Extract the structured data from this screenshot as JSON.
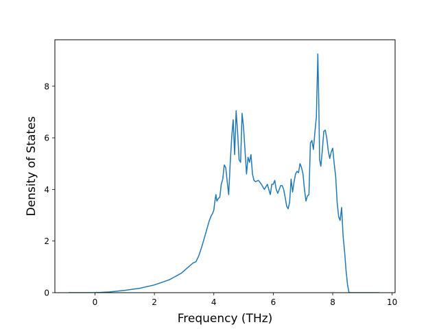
{
  "chart_data": {
    "type": "line",
    "title": "",
    "xlabel": "Frequency (THz)",
    "ylabel": "Density of States",
    "xlim": [
      -1.35,
      10.1
    ],
    "ylim": [
      0,
      9.8
    ],
    "x_ticks": [
      0,
      2,
      4,
      6,
      8,
      10
    ],
    "y_ticks": [
      0,
      2,
      4,
      6,
      8
    ],
    "x_tick_labels": [
      "0",
      "2",
      "4",
      "6",
      "8",
      "10"
    ],
    "y_tick_labels": [
      "0",
      "2",
      "4",
      "6",
      "8"
    ],
    "grid": false,
    "series": [
      {
        "color": "#1f77b4",
        "x": [
          -0.87,
          0.0,
          0.5,
          1.0,
          1.5,
          2.0,
          2.5,
          2.9,
          3.1,
          3.3,
          3.4,
          3.5,
          3.6,
          3.7,
          3.75,
          3.8,
          3.85,
          3.9,
          3.95,
          4.0,
          4.03,
          4.07,
          4.1,
          4.15,
          4.2,
          4.25,
          4.3,
          4.35,
          4.4,
          4.45,
          4.5,
          4.55,
          4.6,
          4.65,
          4.7,
          4.75,
          4.8,
          4.85,
          4.9,
          4.95,
          5.0,
          5.05,
          5.1,
          5.15,
          5.2,
          5.25,
          5.3,
          5.35,
          5.4,
          5.5,
          5.6,
          5.7,
          5.75,
          5.8,
          5.85,
          5.9,
          5.95,
          6.0,
          6.05,
          6.1,
          6.15,
          6.2,
          6.25,
          6.3,
          6.35,
          6.4,
          6.45,
          6.5,
          6.55,
          6.6,
          6.65,
          6.7,
          6.75,
          6.8,
          6.85,
          6.9,
          6.95,
          7.0,
          7.05,
          7.1,
          7.15,
          7.2,
          7.25,
          7.3,
          7.35,
          7.4,
          7.45,
          7.5,
          7.53,
          7.56,
          7.6,
          7.65,
          7.7,
          7.75,
          7.8,
          7.85,
          7.9,
          7.95,
          8.0,
          8.05,
          8.1,
          8.15,
          8.2,
          8.25,
          8.3,
          8.35,
          8.4,
          8.45,
          8.5,
          8.55,
          8.6,
          8.65,
          8.7,
          9.0,
          9.3,
          9.55
        ],
        "y": [
          0.0,
          0.0,
          0.03,
          0.09,
          0.17,
          0.3,
          0.5,
          0.75,
          0.95,
          1.15,
          1.2,
          1.45,
          1.8,
          2.2,
          2.4,
          2.6,
          2.8,
          2.95,
          3.05,
          3.2,
          3.5,
          3.8,
          3.55,
          3.65,
          3.7,
          4.2,
          4.4,
          4.95,
          4.85,
          4.3,
          3.8,
          5.0,
          6.0,
          6.7,
          5.35,
          7.05,
          6.2,
          5.15,
          5.05,
          6.95,
          6.4,
          5.5,
          4.6,
          5.25,
          5.05,
          5.35,
          4.6,
          4.35,
          4.3,
          4.35,
          4.2,
          4.0,
          4.1,
          4.2,
          4.0,
          3.8,
          4.2,
          4.2,
          4.35,
          4.0,
          3.85,
          4.0,
          4.15,
          4.15,
          4.0,
          3.7,
          3.35,
          3.25,
          3.5,
          4.4,
          3.9,
          4.3,
          4.6,
          4.7,
          4.65,
          5.0,
          4.85,
          4.6,
          4.0,
          3.55,
          3.75,
          3.8,
          5.8,
          5.9,
          5.55,
          6.2,
          6.8,
          9.25,
          7.5,
          5.15,
          4.9,
          5.5,
          6.25,
          6.3,
          6.0,
          5.5,
          5.2,
          5.45,
          5.6,
          5.0,
          4.5,
          3.5,
          2.95,
          2.8,
          3.3,
          2.2,
          1.6,
          0.85,
          0.3,
          0.0,
          0.0,
          0.0,
          0.0,
          0.0,
          0.0,
          0.0
        ]
      }
    ]
  }
}
